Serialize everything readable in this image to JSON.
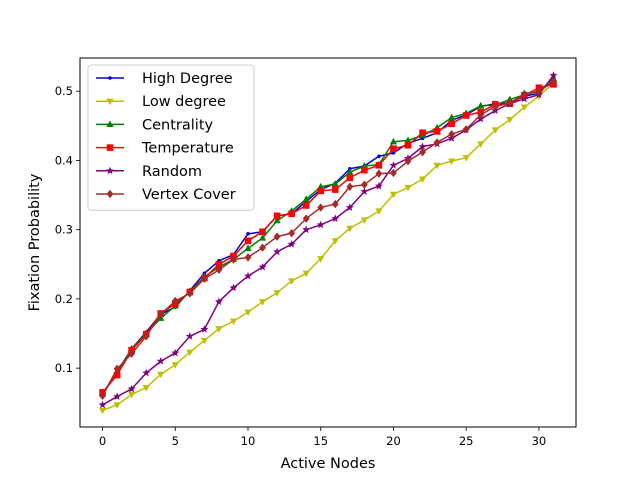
{
  "chart_data": {
    "type": "line",
    "xlabel": "Active Nodes",
    "ylabel": "Fixation Probability",
    "xlim": [
      -1.55,
      32.55
    ],
    "ylim": [
      0.015,
      0.548
    ],
    "xticks": [
      0,
      5,
      10,
      15,
      20,
      25,
      30
    ],
    "yticks": [
      0.1,
      0.2,
      0.3,
      0.4,
      0.5
    ],
    "x": [
      0,
      1,
      2,
      3,
      4,
      5,
      6,
      7,
      8,
      9,
      10,
      11,
      12,
      13,
      14,
      15,
      16,
      17,
      18,
      19,
      20,
      21,
      22,
      23,
      24,
      25,
      26,
      27,
      28,
      29,
      30,
      31
    ],
    "legend_position": "upper left",
    "series": [
      {
        "name": "High Degree",
        "color": "#0000cc",
        "marker": "point",
        "values": [
          0.063,
          0.095,
          0.128,
          0.152,
          0.178,
          0.188,
          0.212,
          0.237,
          0.255,
          0.264,
          0.294,
          0.297,
          0.32,
          0.323,
          0.341,
          0.358,
          0.367,
          0.388,
          0.392,
          0.406,
          0.411,
          0.425,
          0.432,
          0.44,
          0.458,
          0.466,
          0.478,
          0.482,
          0.483,
          0.493,
          0.497,
          0.52
        ]
      },
      {
        "name": "Low degree",
        "color": "#bfbf00",
        "marker": "triangle-down",
        "values": [
          0.039,
          0.047,
          0.062,
          0.072,
          0.091,
          0.105,
          0.123,
          0.14,
          0.157,
          0.168,
          0.181,
          0.196,
          0.209,
          0.226,
          0.237,
          0.258,
          0.284,
          0.302,
          0.314,
          0.327,
          0.351,
          0.361,
          0.373,
          0.393,
          0.399,
          0.404,
          0.424,
          0.444,
          0.459,
          0.477,
          0.493,
          0.512
        ]
      },
      {
        "name": "Centrality",
        "color": "#008000",
        "marker": "triangle-up",
        "values": [
          0.063,
          0.093,
          0.128,
          0.15,
          0.172,
          0.19,
          0.211,
          0.232,
          0.246,
          0.257,
          0.273,
          0.288,
          0.313,
          0.327,
          0.344,
          0.362,
          0.366,
          0.383,
          0.392,
          0.394,
          0.427,
          0.429,
          0.436,
          0.447,
          0.462,
          0.468,
          0.479,
          0.48,
          0.488,
          0.495,
          0.5,
          0.518
        ]
      },
      {
        "name": "Temperature",
        "color": "#ff0000",
        "marker": "square",
        "values": [
          0.065,
          0.09,
          0.126,
          0.149,
          0.179,
          0.193,
          0.21,
          0.23,
          0.25,
          0.262,
          0.284,
          0.297,
          0.32,
          0.323,
          0.335,
          0.356,
          0.358,
          0.375,
          0.386,
          0.393,
          0.417,
          0.422,
          0.44,
          0.442,
          0.453,
          0.465,
          0.47,
          0.481,
          0.482,
          0.494,
          0.505,
          0.51
        ]
      },
      {
        "name": "Random",
        "color": "#800080",
        "marker": "star",
        "values": [
          0.047,
          0.059,
          0.07,
          0.093,
          0.11,
          0.122,
          0.146,
          0.156,
          0.196,
          0.216,
          0.233,
          0.246,
          0.268,
          0.279,
          0.3,
          0.307,
          0.316,
          0.332,
          0.355,
          0.363,
          0.393,
          0.403,
          0.42,
          0.424,
          0.432,
          0.444,
          0.46,
          0.472,
          0.482,
          0.489,
          0.495,
          0.523
        ]
      },
      {
        "name": "Vertex Cover",
        "color": "#a52a2a",
        "marker": "diamond",
        "values": [
          0.06,
          0.099,
          0.121,
          0.146,
          0.178,
          0.197,
          0.208,
          0.229,
          0.242,
          0.257,
          0.26,
          0.274,
          0.29,
          0.295,
          0.316,
          0.332,
          0.337,
          0.362,
          0.365,
          0.381,
          0.382,
          0.399,
          0.412,
          0.426,
          0.438,
          0.445,
          0.466,
          0.478,
          0.483,
          0.496,
          0.5,
          0.514
        ]
      }
    ]
  }
}
